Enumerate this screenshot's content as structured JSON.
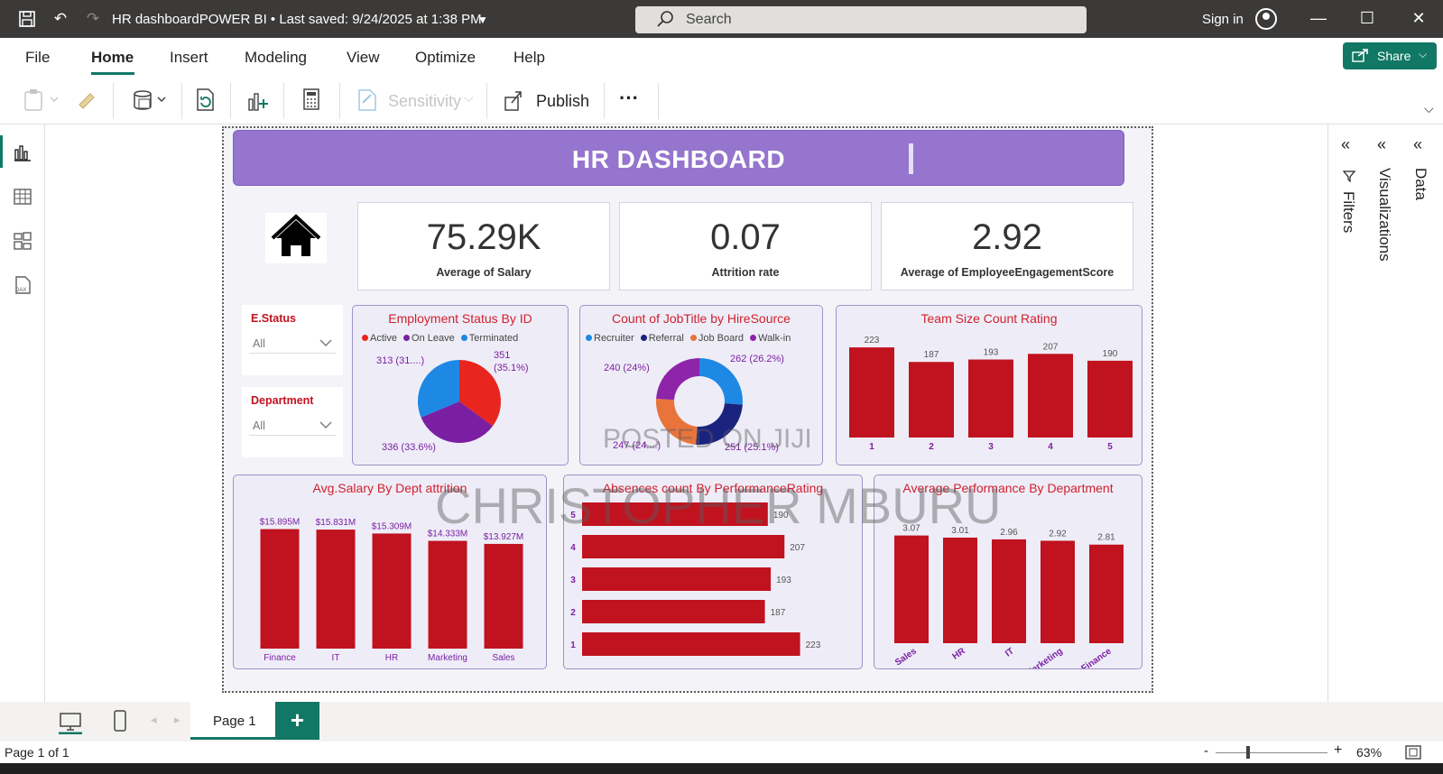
{
  "app": {
    "title": "HR dashboardPOWER BI • Last saved: 9/24/2025 at 1:38 PM",
    "search_placeholder": "Search",
    "sign_in": "Sign in"
  },
  "menu": {
    "items": [
      "File",
      "Home",
      "Insert",
      "Modeling",
      "View",
      "Optimize",
      "Help"
    ],
    "active": "Home",
    "share_label": "Share"
  },
  "ribbon": {
    "sensitivity_label": "Sensitivity",
    "publish_label": "Publish",
    "more_label": "···"
  },
  "panes": {
    "filters": "Filters",
    "visualizations": "Visualizations",
    "data": "Data"
  },
  "pages": {
    "current": "Page 1",
    "status": "Page 1 of 1",
    "zoom": "63%"
  },
  "dashboard": {
    "title": "HR DASHBOARD",
    "kpis": [
      {
        "value": "75.29K",
        "label": "Average of Salary"
      },
      {
        "value": "0.07",
        "label": "Attrition rate"
      },
      {
        "value": "2.92",
        "label": "Average of EmployeeEngagementScore"
      }
    ],
    "slicers": [
      {
        "title": "E.Status",
        "value": "All"
      },
      {
        "title": "Department",
        "value": "All"
      }
    ],
    "watermark_1": "POSTED ON JIJI",
    "watermark_2": "CHRISTOPHER MBURU"
  },
  "colors": {
    "accent": "#117865",
    "header": "#9575cd",
    "bar": "#c1121f",
    "title_red": "#d0202e",
    "active": "#e8251f",
    "on_leave": "#7b1fa2",
    "terminated": "#1e88e5",
    "recruiter": "#1e88e5",
    "referral": "#1a237e",
    "job_board": "#e8743b",
    "walk_in": "#8e24aa"
  },
  "chart_data": [
    {
      "type": "pie",
      "title": "Employment Status By ID",
      "categories": [
        "Active",
        "On Leave",
        "Terminated"
      ],
      "values": [
        351,
        336,
        313
      ],
      "labels": [
        "351 (35.1%)",
        "336 (33.6%)",
        "313 (31....)"
      ]
    },
    {
      "type": "pie",
      "donut": true,
      "title": "Count of JobTitle by HireSource",
      "categories": [
        "Recruiter",
        "Referral",
        "Job Board",
        "Walk-in"
      ],
      "values": [
        262,
        251,
        247,
        240
      ],
      "labels": [
        "262 (26.2%)",
        "251 (25.1%)",
        "247 (24....)",
        "240 (24%)"
      ]
    },
    {
      "type": "bar",
      "title": "Team Size Count Rating",
      "categories": [
        "1",
        "2",
        "3",
        "4",
        "5"
      ],
      "values": [
        223,
        187,
        193,
        207,
        190
      ],
      "ylim": [
        0,
        250
      ]
    },
    {
      "type": "bar",
      "title": "Avg.Salary By Dept attrition",
      "categories": [
        "Finance",
        "IT",
        "HR",
        "Marketing",
        "Sales"
      ],
      "values": [
        15.895,
        15.831,
        15.309,
        14.333,
        13.927
      ],
      "value_labels": [
        "$15.895M",
        "$15.831M",
        "$15.309M",
        "$14.333M",
        "$13.927M"
      ],
      "ylim": [
        0,
        18
      ]
    },
    {
      "type": "bar",
      "orientation": "horizontal",
      "title": "Absences count By PerformanceRating",
      "categories": [
        "5",
        "4",
        "3",
        "2",
        "1"
      ],
      "values": [
        190,
        207,
        193,
        187,
        223
      ],
      "ylim": [
        0,
        240
      ]
    },
    {
      "type": "bar",
      "title": "Average Performance By Department",
      "categories": [
        "Sales",
        "HR",
        "IT",
        "Marketing",
        "Finance"
      ],
      "values": [
        3.07,
        3.01,
        2.96,
        2.92,
        2.81
      ],
      "value_labels": [
        "3.07",
        "3.01",
        "2.96",
        "2.92",
        "2.81"
      ],
      "ylim": [
        0,
        3.6
      ]
    }
  ]
}
